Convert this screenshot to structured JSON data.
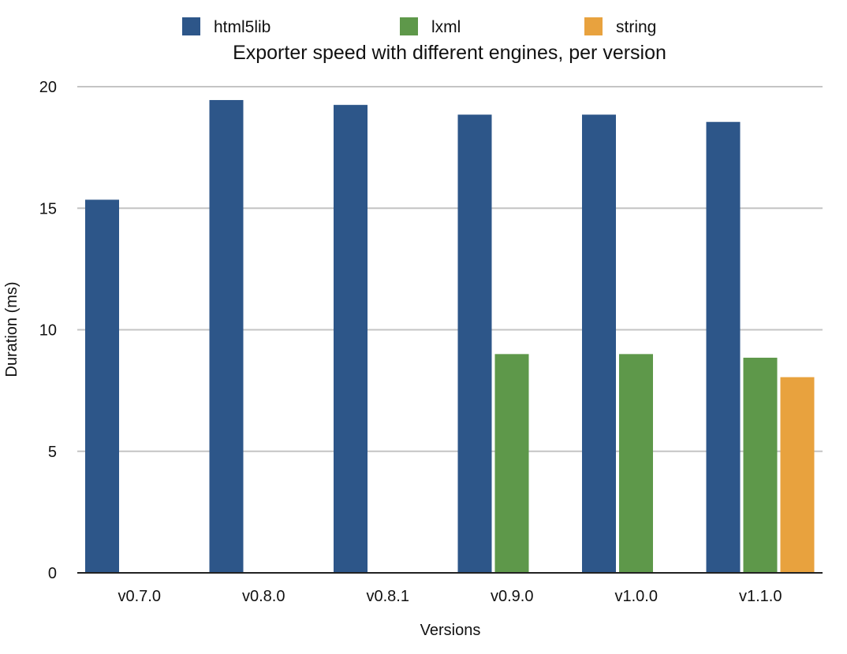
{
  "chart_data": {
    "type": "bar",
    "title": "Exporter speed with different engines, per version",
    "xlabel": "Versions",
    "ylabel": "Duration (ms)",
    "ylim": [
      0,
      20
    ],
    "yticks": [
      "0",
      "5",
      "10",
      "15",
      "20"
    ],
    "grid": true,
    "legend_position": "top",
    "categories": [
      "v0.7.0",
      "v0.8.0",
      "v0.8.1",
      "v0.9.0",
      "v1.0.0",
      "v1.1.0"
    ],
    "series": [
      {
        "name": "html5lib",
        "color": "#2d5689",
        "values": [
          15.35,
          19.45,
          19.25,
          18.85,
          18.85,
          18.55
        ]
      },
      {
        "name": "lxml",
        "color": "#5e984a",
        "values": [
          null,
          null,
          null,
          9.0,
          9.0,
          8.85
        ]
      },
      {
        "name": "string",
        "color": "#e8a23e",
        "values": [
          null,
          null,
          null,
          null,
          null,
          8.05
        ]
      }
    ]
  }
}
